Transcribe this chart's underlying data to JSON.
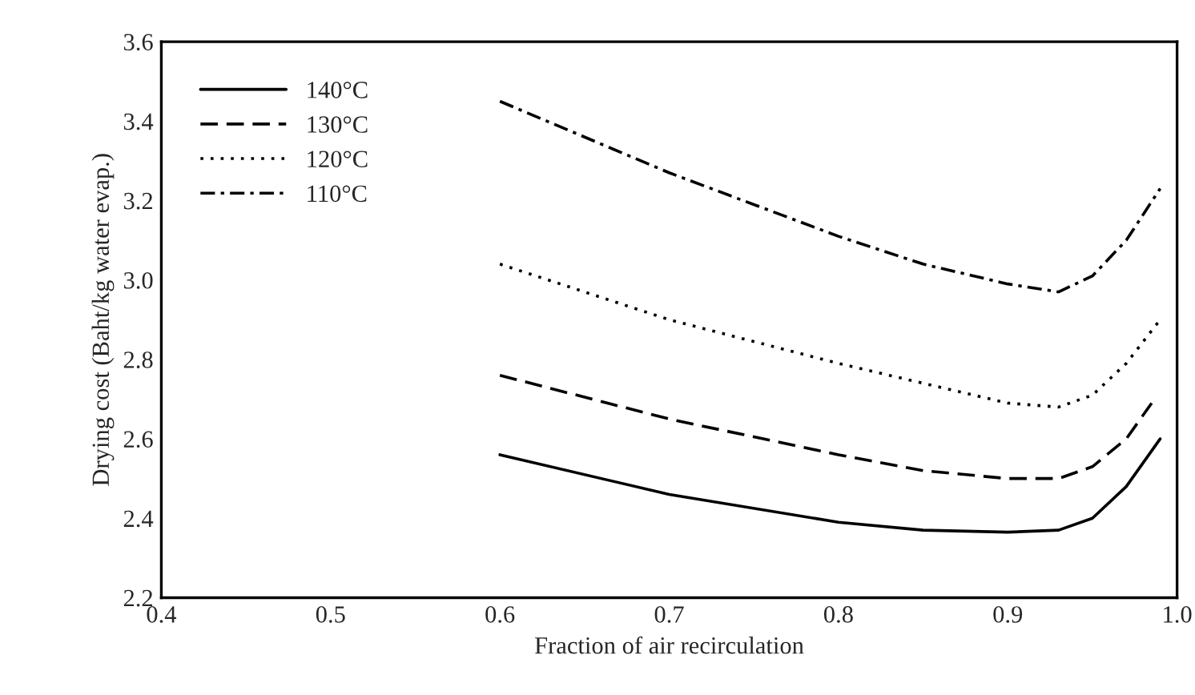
{
  "chart_data": {
    "type": "line",
    "xlabel": "Fraction of air recirculation",
    "ylabel": "Drying cost (Baht/kg water evap.)",
    "xlim": [
      0.4,
      1.0
    ],
    "xticks": [
      {
        "value": 0.4,
        "label": "0.4"
      },
      {
        "value": 0.5,
        "label": "0.5"
      },
      {
        "value": 0.6,
        "label": "0.6"
      },
      {
        "value": 0.7,
        "label": "0.7"
      },
      {
        "value": 0.8,
        "label": "0.8"
      },
      {
        "value": 0.9,
        "label": "0.9"
      },
      {
        "value": 1.0,
        "label": "1.0"
      }
    ],
    "ylim": [
      2.2,
      3.6
    ],
    "yticks": [
      {
        "value": 2.2,
        "label": "2.2"
      },
      {
        "value": 2.4,
        "label": "2.4"
      },
      {
        "value": 2.6,
        "label": "2.6"
      },
      {
        "value": 2.8,
        "label": "2.8"
      },
      {
        "value": 3.0,
        "label": "3.0"
      },
      {
        "value": 3.2,
        "label": "3.2"
      },
      {
        "value": 3.4,
        "label": "3.4"
      },
      {
        "value": 3.6,
        "label": "3.6"
      }
    ],
    "x": [
      0.6,
      0.7,
      0.8,
      0.85,
      0.9,
      0.93,
      0.95,
      0.97,
      0.99
    ],
    "legend": "top left",
    "marker": "none",
    "series": [
      {
        "name": "140°C",
        "color": "#000000",
        "line_style": "solid",
        "values": [
          2.56,
          2.46,
          2.39,
          2.37,
          2.365,
          2.37,
          2.4,
          2.48,
          2.6
        ]
      },
      {
        "name": "130°C",
        "color": "#000000",
        "line_style": "dashed",
        "x": [
          0.6,
          0.7,
          0.8,
          0.85,
          0.9,
          0.93,
          0.95,
          0.97,
          0.985
        ],
        "values": [
          2.76,
          2.65,
          2.56,
          2.52,
          2.5,
          2.5,
          2.53,
          2.6,
          2.69
        ]
      },
      {
        "name": "120°C",
        "color": "#000000",
        "line_style": "dotted",
        "values": [
          3.04,
          2.9,
          2.79,
          2.74,
          2.69,
          2.68,
          2.71,
          2.79,
          2.9
        ]
      },
      {
        "name": "110°C",
        "color": "#000000",
        "line_style": "dashdot",
        "values": [
          3.45,
          3.27,
          3.11,
          3.04,
          2.99,
          2.97,
          3.01,
          3.1,
          3.23
        ]
      }
    ]
  }
}
